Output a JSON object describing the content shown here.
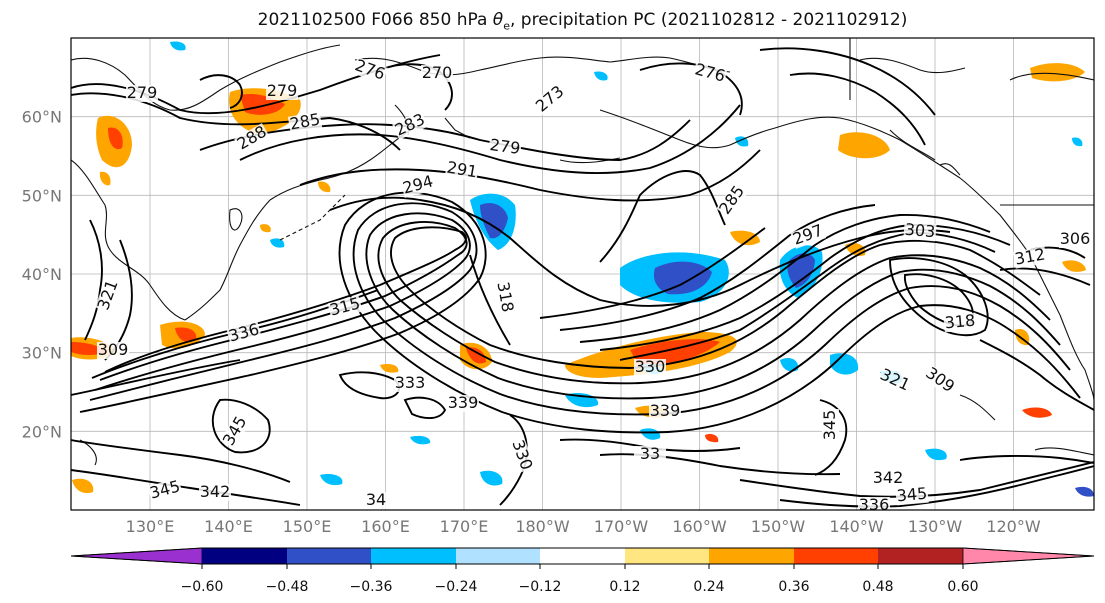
{
  "figure": {
    "title_prefix": "2021102500 F066 850 hPa ",
    "title_symbol": "θ",
    "title_sub": "e",
    "title_suffix": ", precipitation PC (2021102812 - 2021102912)"
  },
  "axes": {
    "lat_labels": [
      "60°N",
      "50°N",
      "40°N",
      "30°N",
      "20°N"
    ],
    "lon_labels": [
      "130°E",
      "140°E",
      "150°E",
      "160°E",
      "170°E",
      "180°W",
      "170°W",
      "160°W",
      "150°W",
      "140°W",
      "130°W",
      "120°W"
    ]
  },
  "colorbar": {
    "colors": [
      "#9b30d0",
      "#000080",
      "#3050c8",
      "#00bfff",
      "#b0e2ff",
      "#ffffff",
      "#ffe680",
      "#ffa500",
      "#ff4000",
      "#b22222",
      "#ff88aa"
    ],
    "ticks": [
      "−0.60",
      "−0.48",
      "−0.36",
      "−0.24",
      "−0.12",
      "0.12",
      "0.24",
      "0.36",
      "0.48",
      "0.60"
    ]
  },
  "contour_labels": [
    "279",
    "279",
    "276",
    "270",
    "273",
    "276",
    "288",
    "285",
    "283",
    "279",
    "291",
    "294",
    "285",
    "297",
    "303",
    "306",
    "312",
    "318",
    "315",
    "336",
    "309",
    "318",
    "321",
    "309",
    "330",
    "333",
    "339",
    "345",
    "345",
    "342",
    "339",
    "33",
    "330",
    "34",
    "345",
    "342",
    "336",
    "345",
    "321"
  ],
  "map_layers": [
    "coastline",
    "graticule",
    "theta-e-contours",
    "precip-shading"
  ]
}
